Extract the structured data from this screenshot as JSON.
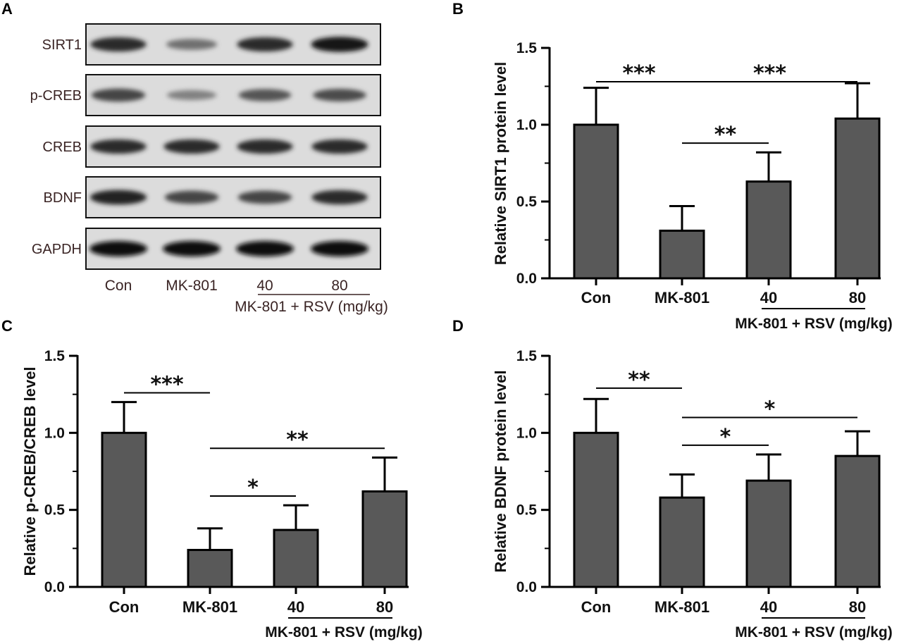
{
  "western_blot": {
    "panel": "A",
    "proteins": [
      {
        "name": "SIRT1",
        "intensity": [
          0.85,
          0.45,
          0.85,
          0.95
        ]
      },
      {
        "name": "p-CREB",
        "intensity": [
          0.7,
          0.35,
          0.6,
          0.65
        ]
      },
      {
        "name": "CREB",
        "intensity": [
          0.85,
          0.85,
          0.85,
          0.85
        ]
      },
      {
        "name": "BDNF",
        "intensity": [
          0.9,
          0.7,
          0.7,
          0.85
        ]
      },
      {
        "name": "GAPDH",
        "intensity": [
          1.0,
          1.0,
          1.0,
          1.0
        ]
      }
    ],
    "lanes": [
      "Con",
      "MK-801",
      "40",
      "80"
    ],
    "group_label": "MK-801 + RSV (mg/kg)"
  },
  "chart_data": [
    {
      "panel": "B",
      "type": "bar",
      "categories": [
        "Con",
        "MK-801",
        "40",
        "80"
      ],
      "values": [
        1.0,
        0.31,
        0.63,
        1.04
      ],
      "error": [
        0.24,
        0.16,
        0.19,
        0.23
      ],
      "ylabel": "Relative SIRT1 protein level",
      "ylim": [
        0,
        1.5
      ],
      "yticks": [
        "0.0",
        "0.5",
        "1.0",
        "1.5"
      ],
      "group_label": "MK-801 + RSV (mg/kg)",
      "significance": [
        {
          "from": 0,
          "to": 1,
          "y": 1.28,
          "label": "***"
        },
        {
          "from": 1,
          "to": 3,
          "y": 1.28,
          "label": "***"
        },
        {
          "from": 1,
          "to": 2,
          "y": 0.88,
          "label": "**"
        }
      ],
      "bar_color": "#595959"
    },
    {
      "panel": "C",
      "type": "bar",
      "categories": [
        "Con",
        "MK-801",
        "40",
        "80"
      ],
      "values": [
        1.0,
        0.24,
        0.37,
        0.62
      ],
      "error": [
        0.2,
        0.14,
        0.16,
        0.22
      ],
      "ylabel": "Relative p-CREB/CREB level",
      "ylim": [
        0,
        1.5
      ],
      "yticks": [
        "0.0",
        "0.5",
        "1.0",
        "1.5"
      ],
      "group_label": "MK-801 + RSV (mg/kg)",
      "significance": [
        {
          "from": 0,
          "to": 1,
          "y": 1.26,
          "label": "***"
        },
        {
          "from": 1,
          "to": 3,
          "y": 0.9,
          "label": "**"
        },
        {
          "from": 1,
          "to": 2,
          "y": 0.59,
          "label": "*"
        }
      ],
      "bar_color": "#595959"
    },
    {
      "panel": "D",
      "type": "bar",
      "categories": [
        "Con",
        "MK-801",
        "40",
        "80"
      ],
      "values": [
        1.0,
        0.58,
        0.69,
        0.85
      ],
      "error": [
        0.22,
        0.15,
        0.17,
        0.16
      ],
      "ylabel": "Relative BDNF protein level",
      "ylim": [
        0,
        1.5
      ],
      "yticks": [
        "0.0",
        "0.5",
        "1.0",
        "1.5"
      ],
      "group_label": "MK-801 + RSV (mg/kg)",
      "significance": [
        {
          "from": 0,
          "to": 1,
          "y": 1.29,
          "label": "**"
        },
        {
          "from": 1,
          "to": 3,
          "y": 1.1,
          "label": "*"
        },
        {
          "from": 1,
          "to": 2,
          "y": 0.92,
          "label": "*"
        }
      ],
      "bar_color": "#595959"
    }
  ]
}
